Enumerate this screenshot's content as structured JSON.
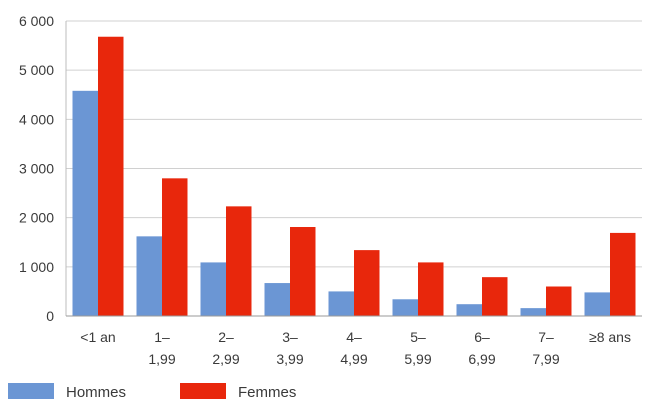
{
  "chart_data": {
    "type": "bar",
    "categories": [
      [
        "<1 an"
      ],
      [
        "1–",
        "1,99"
      ],
      [
        "2–",
        "2,99"
      ],
      [
        "3–",
        "3,99"
      ],
      [
        "4–",
        "4,99"
      ],
      [
        "5–",
        "5,99"
      ],
      [
        "6–",
        "6,99"
      ],
      [
        "7–",
        "7,99"
      ],
      [
        "≥8 ans"
      ]
    ],
    "series": [
      {
        "name": "Hommes",
        "color": "#6b96d4",
        "values": [
          4580,
          1620,
          1090,
          670,
          500,
          340,
          240,
          160,
          480
        ]
      },
      {
        "name": "Femmes",
        "color": "#e8270c",
        "values": [
          5680,
          2800,
          2230,
          1810,
          1340,
          1090,
          790,
          600,
          1690
        ]
      }
    ],
    "ylim": [
      0,
      6000
    ],
    "yticks": [
      0,
      1000,
      2000,
      3000,
      4000,
      5000,
      6000
    ],
    "ytick_labels": [
      "0",
      "1 000",
      "2 000",
      "3 000",
      "4 000",
      "5 000",
      "6 000"
    ],
    "grid": true,
    "legend_position": "bottom-left"
  }
}
